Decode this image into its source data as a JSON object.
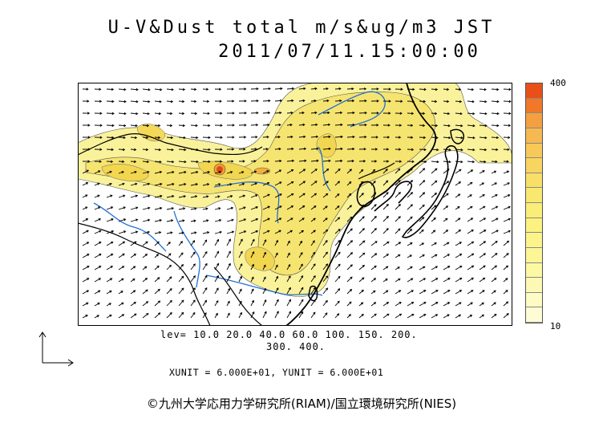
{
  "title_line1": "U-V&Dust total m/s&ug/m3 JST",
  "title_line2": "2011/07/11.15:00:00",
  "colorbar": {
    "max_label": "400",
    "min_label": "10",
    "colors": [
      "#e8501a",
      "#f07828",
      "#f4a040",
      "#f6b850",
      "#f8c858",
      "#f8d460",
      "#f8e068",
      "#f8e870",
      "#faee78",
      "#fbf280",
      "#fcf48a",
      "#fcf696",
      "#fdf8a4",
      "#fdf9b4",
      "#fefbc4",
      "#fefcd4"
    ]
  },
  "levels_line1": "lev= 10.0 20.0 40.0 60.0 100. 150. 200.",
  "levels_line2": "300. 400.",
  "unit_line": "XUNIT = 6.000E+01, YUNIT = 6.000E+01",
  "credit": "©九州大学応用力学研究所(RIAM)/国立環境研究所(NIES)",
  "icons": {
    "axes": "axes-arrows-icon"
  },
  "map": {
    "dust_fill_color": "#f8ee8a",
    "dust_mid_color": "#f4dc60",
    "hotspot_color": "#e24a1a",
    "river_color": "#1f6fd8",
    "coast_color": "#000000"
  }
}
